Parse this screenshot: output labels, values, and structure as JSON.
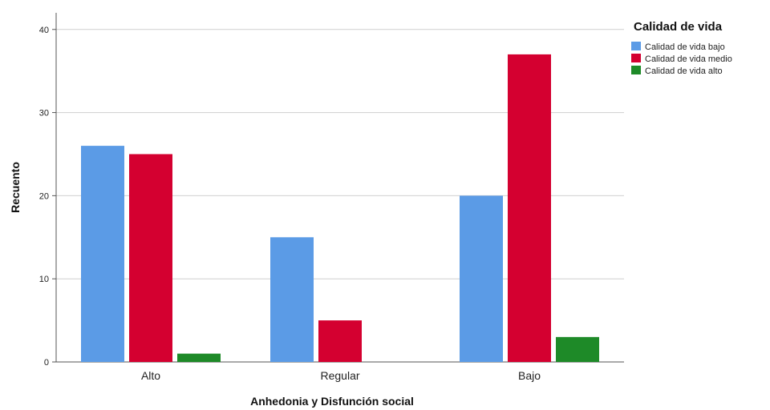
{
  "chart_data": {
    "type": "bar",
    "categories": [
      "Alto",
      "Regular",
      "Bajo"
    ],
    "series": [
      {
        "name": "Calidad de vida bajo",
        "values": [
          26,
          15,
          20
        ],
        "color": "#5b9be6"
      },
      {
        "name": "Calidad de vida medio",
        "values": [
          25,
          5,
          37
        ],
        "color": "#d40030"
      },
      {
        "name": "Calidad de vida alto",
        "values": [
          1,
          0,
          3
        ],
        "color": "#1e8a28"
      }
    ],
    "xlabel": "Anhedonia y Disfunción social",
    "ylabel": "Recuento",
    "ylim": [
      0,
      42
    ],
    "yticks": [
      0,
      10,
      20,
      30,
      40
    ],
    "grid": true,
    "legend": {
      "title": "Calidad de vida",
      "position": "top-right"
    }
  }
}
